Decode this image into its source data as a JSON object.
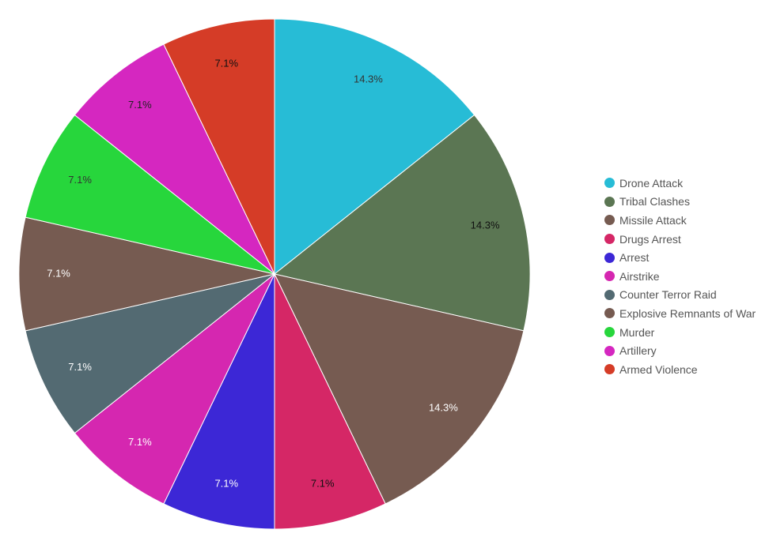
{
  "chart_data": {
    "type": "pie",
    "title": "",
    "legend_position": "right",
    "slices": [
      {
        "label": "Drone Attack",
        "value": 2,
        "percent_label": "14.3%",
        "color": "#27bcd6",
        "label_color": "#333333"
      },
      {
        "label": "Tribal Clashes",
        "value": 2,
        "percent_label": "14.3%",
        "color": "#5b7653",
        "label_color": "#111111"
      },
      {
        "label": "Missile Attack",
        "value": 2,
        "percent_label": "14.3%",
        "color": "#765b51",
        "label_color": "#ffffff"
      },
      {
        "label": "Drugs Arrest",
        "value": 1,
        "percent_label": "7.1%",
        "color": "#d52766",
        "label_color": "#111111"
      },
      {
        "label": "Arrest",
        "value": 1,
        "percent_label": "7.1%",
        "color": "#3c27d6",
        "label_color": "#ffffff"
      },
      {
        "label": "Airstrike",
        "value": 1,
        "percent_label": "7.1%",
        "color": "#d527b0",
        "label_color": "#ffffff"
      },
      {
        "label": "Counter Terror Raid",
        "value": 1,
        "percent_label": "7.1%",
        "color": "#536a72",
        "label_color": "#ffffff"
      },
      {
        "label": "Explosive Remnants of War",
        "value": 1,
        "percent_label": "7.1%",
        "color": "#765b51",
        "label_color": "#ffffff"
      },
      {
        "label": "Murder",
        "value": 1,
        "percent_label": "7.1%",
        "color": "#27d63c",
        "label_color": "#333333"
      },
      {
        "label": "Artillery",
        "value": 1,
        "percent_label": "7.1%",
        "color": "#d527c0",
        "label_color": "#222222"
      },
      {
        "label": "Armed Violence",
        "value": 1,
        "percent_label": "7.1%",
        "color": "#d53c27",
        "label_color": "#111111"
      }
    ]
  }
}
